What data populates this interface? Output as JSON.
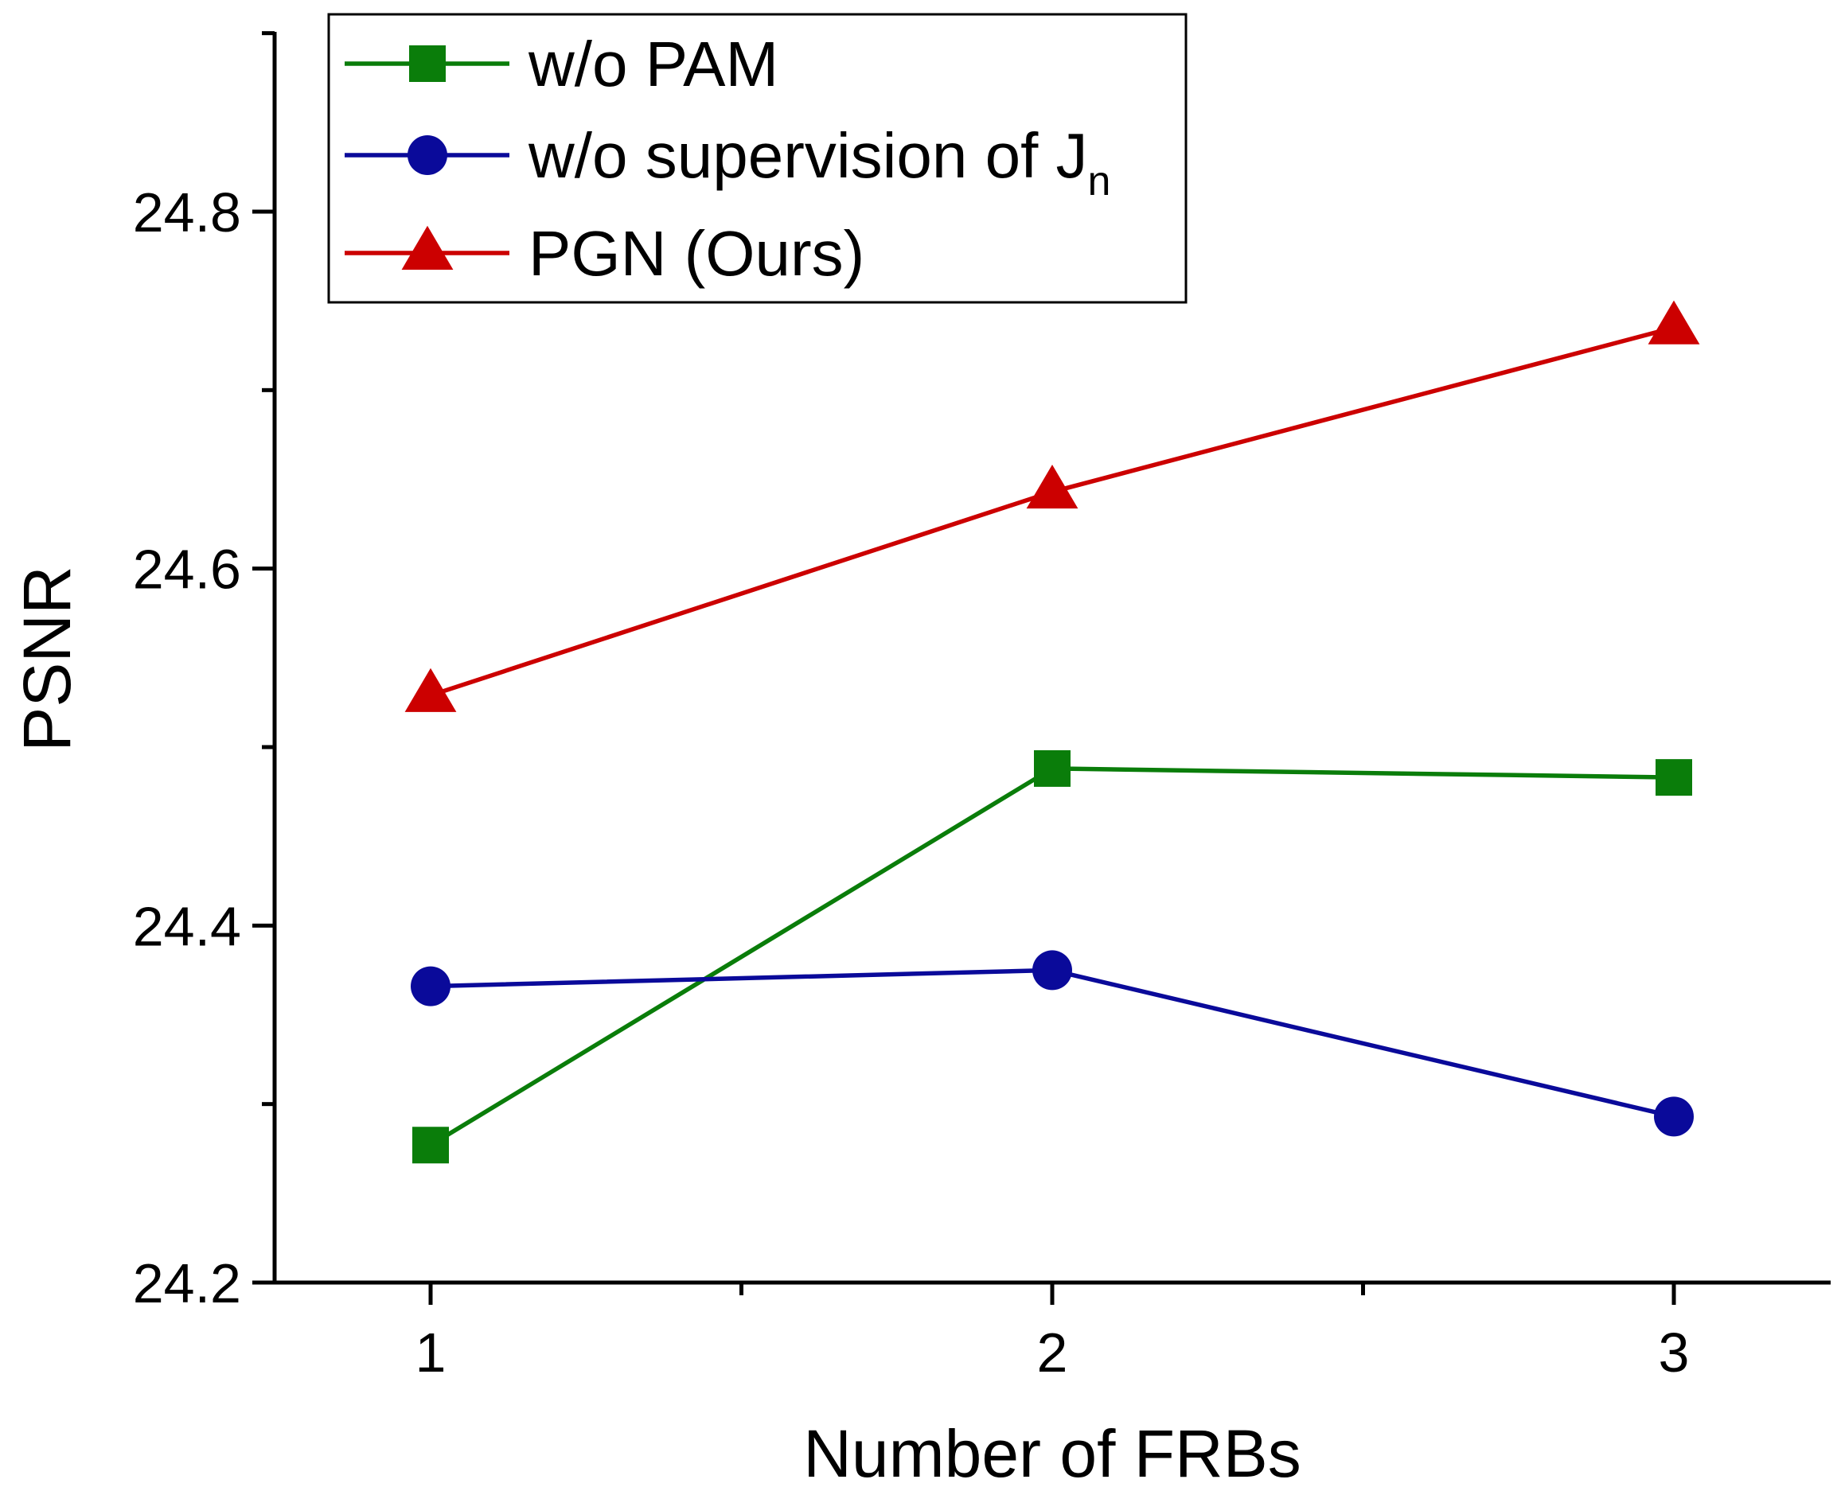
{
  "chart_data": {
    "type": "line",
    "title": "",
    "xlabel": "Number of  FRBs",
    "ylabel": "PSNR",
    "x": [
      1,
      2,
      3
    ],
    "xticks": [
      "1",
      "2",
      "3"
    ],
    "yticks": [
      "24.2",
      "24.4",
      "24.6",
      "24.8"
    ],
    "ylim": [
      24.2,
      24.9
    ],
    "xlim": [
      0.72,
      3.25
    ],
    "grid": false,
    "legend_position": "top-left",
    "series": [
      {
        "name": "w/o PAM",
        "label_main": "w/o PAM",
        "label_sub": "",
        "marker": "square",
        "color": "#0a7d0a",
        "values": [
          24.277,
          24.488,
          24.483
        ]
      },
      {
        "name": "w/o supervision of Jn",
        "label_main": "w/o supervision of J",
        "label_sub": "n",
        "marker": "circle",
        "color": "#0a0a9a",
        "values": [
          24.366,
          24.375,
          24.293
        ]
      },
      {
        "name": "PGN (Ours)",
        "label_main": "PGN (Ours)",
        "label_sub": "",
        "marker": "triangle",
        "color": "#cc0000",
        "values": [
          24.529,
          24.643,
          24.735
        ]
      }
    ]
  }
}
